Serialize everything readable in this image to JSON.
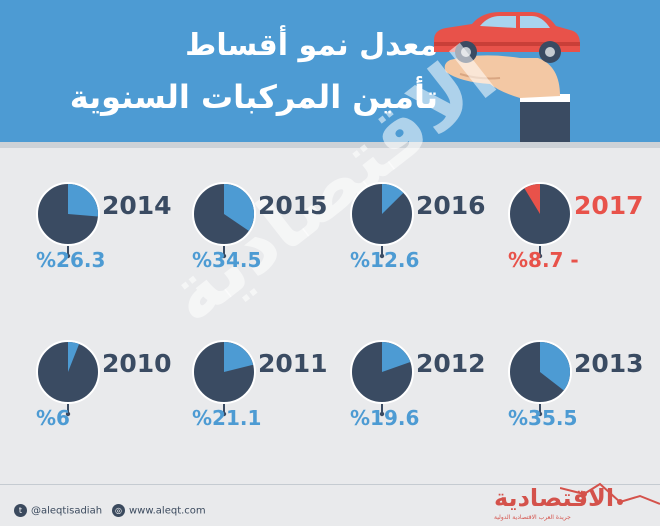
{
  "header": {
    "title_line1": "معدل نمو أقساط",
    "title_line2": "تأمين المركبات السنوية",
    "background_color": "#4d9bd3",
    "illustration": "car-on-hand-icon"
  },
  "watermark": "الاقتصادية",
  "colors": {
    "pie_base": "#3a4b62",
    "pie_slice": "#4d9bd3",
    "negative_slice": "#e8524a",
    "label_blue": "#4d9bd3",
    "label_red": "#e8524a"
  },
  "chart_data": {
    "type": "pie",
    "title": "معدل نمو أقساط تأمين المركبات السنوية",
    "unit": "%",
    "items": [
      {
        "year": "2014",
        "value": 26.3,
        "label": "%26.3",
        "negative": false
      },
      {
        "year": "2015",
        "value": 34.5,
        "label": "%34.5",
        "negative": false
      },
      {
        "year": "2016",
        "value": 12.6,
        "label": "%12.6",
        "negative": false
      },
      {
        "year": "2017",
        "value": -8.7,
        "label": "%8.7 -",
        "negative": true
      },
      {
        "year": "2010",
        "value": 6,
        "label": "%6",
        "negative": false
      },
      {
        "year": "2011",
        "value": 21.1,
        "label": "%21.1",
        "negative": false
      },
      {
        "year": "2012",
        "value": 19.6,
        "label": "%19.6",
        "negative": false
      },
      {
        "year": "2013",
        "value": 35.5,
        "label": "%35.5",
        "negative": false
      }
    ]
  },
  "footer": {
    "twitter_handle": "@aleqtisadiah",
    "website": "www.aleqt.com",
    "logo_text": "الاقتصادية",
    "logo_subtitle": "جريدة العرب الاقتصادية الدولية",
    "twitter_icon": "twitter-icon",
    "web_icon": "globe-icon"
  }
}
